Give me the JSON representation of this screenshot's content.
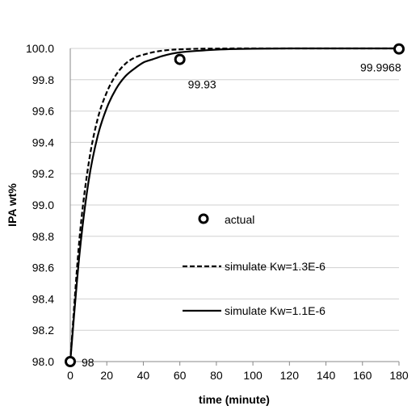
{
  "chart_data": {
    "type": "line",
    "title": "",
    "xlabel": "time (minute)",
    "ylabel": "IPA wt%",
    "xlim": [
      0,
      180
    ],
    "ylim": [
      98.0,
      100.0
    ],
    "xticks": [
      "0",
      "20",
      "40",
      "60",
      "80",
      "100",
      "120",
      "140",
      "160",
      "180"
    ],
    "yticks": [
      "98.0",
      "98.2",
      "98.4",
      "98.6",
      "98.8",
      "99.0",
      "99.2",
      "99.4",
      "99.6",
      "99.8",
      "100.0"
    ],
    "grid": "horizontal",
    "legend_position": "center-right",
    "series": [
      {
        "name": "actual",
        "style": "marker-circle",
        "color": "#000000",
        "x": [
          0,
          60,
          180
        ],
        "y": [
          98.0,
          99.93,
          99.9968
        ],
        "point_labels": [
          "98",
          "99.93",
          "99.9968"
        ]
      },
      {
        "name": "simulate Kw=1.3E-6",
        "style": "dashed",
        "color": "#000000",
        "x": [
          0,
          5,
          10,
          15,
          20,
          25,
          30,
          35,
          40,
          45,
          50,
          55,
          60,
          70,
          80,
          90,
          100,
          120,
          140,
          160,
          180
        ],
        "y": [
          98.0,
          98.78,
          99.26,
          99.55,
          99.72,
          99.83,
          99.9,
          99.94,
          99.96,
          99.975,
          99.985,
          99.991,
          99.994,
          99.998,
          99.999,
          100.0,
          100.0,
          100.0,
          100.0,
          100.0,
          100.0
        ]
      },
      {
        "name": "simulate Kw=1.1E-6",
        "style": "solid",
        "color": "#000000",
        "x": [
          0,
          5,
          10,
          15,
          20,
          25,
          30,
          35,
          40,
          45,
          50,
          55,
          60,
          70,
          80,
          90,
          100,
          120,
          140,
          160,
          180
        ],
        "y": [
          98.0,
          98.68,
          99.15,
          99.44,
          99.62,
          99.74,
          99.82,
          99.87,
          99.91,
          99.93,
          99.95,
          99.965,
          99.975,
          99.985,
          99.992,
          99.996,
          99.998,
          100.0,
          100.0,
          100.0,
          100.0
        ]
      }
    ]
  }
}
